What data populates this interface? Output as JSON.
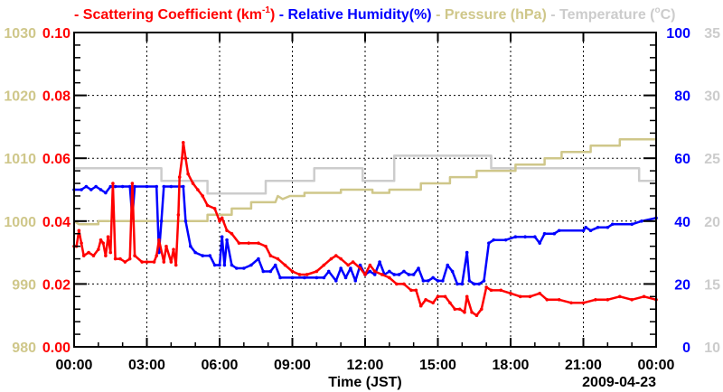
{
  "chart_data": {
    "type": "line",
    "legend": [
      {
        "prefix": "- ",
        "text": "Scattering Coefficient (km",
        "sup": "-1",
        "suffix": ")",
        "color": "#ff0000"
      },
      {
        "prefix": " - ",
        "text": "Relative Humidity(%)",
        "color": "#0000ff"
      },
      {
        "prefix": " - ",
        "text": "Pressure (hPa)",
        "color": "#cfc78a"
      },
      {
        "prefix": " - ",
        "text": "Temperature (",
        "sup": "o",
        "suffix": "C)",
        "color": "#cccccc"
      }
    ],
    "legend_placement": "top",
    "xlabel": "Time (JST)",
    "date_label": "2009-04-23",
    "x_range_hours": [
      0,
      24
    ],
    "x_ticks": [
      "00:00",
      "03:00",
      "06:00",
      "09:00",
      "12:00",
      "15:00",
      "18:00",
      "21:00",
      "00:00"
    ],
    "axes": {
      "scattering": {
        "range": [
          0,
          0.1
        ],
        "ticks": [
          "0.00",
          "0.02",
          "0.04",
          "0.06",
          "0.08",
          "0.10"
        ],
        "color": "#ff0000",
        "side": "left-inner"
      },
      "pressure": {
        "range": [
          980,
          1030
        ],
        "ticks": [
          "980",
          "990",
          "1000",
          "1010",
          "1020",
          "1030"
        ],
        "color": "#cfc78a",
        "side": "left-outer"
      },
      "humidity": {
        "range": [
          0,
          100
        ],
        "ticks": [
          "0",
          "20",
          "40",
          "60",
          "80",
          "100"
        ],
        "color": "#0000ff",
        "side": "right-inner"
      },
      "temperature": {
        "range": [
          10,
          35
        ],
        "ticks": [
          "10",
          "15",
          "20",
          "25",
          "30",
          "35"
        ],
        "color": "#cccccc",
        "side": "right-outer"
      }
    },
    "grid": true,
    "series": [
      {
        "name": "Temperature",
        "axis": "temperature",
        "color": "#cccccc",
        "step": true,
        "points": [
          [
            0,
            24.2
          ],
          [
            3.6,
            24.2
          ],
          [
            3.6,
            23.2
          ],
          [
            5.5,
            23.2
          ],
          [
            5.5,
            22.2
          ],
          [
            7.9,
            22.2
          ],
          [
            7.9,
            23.2
          ],
          [
            9.9,
            23.2
          ],
          [
            9.9,
            24.2
          ],
          [
            11.9,
            24.2
          ],
          [
            11.9,
            23.2
          ],
          [
            13.2,
            23.2
          ],
          [
            13.2,
            25.2
          ],
          [
            17.2,
            25.2
          ],
          [
            17.2,
            24.2
          ],
          [
            23.3,
            24.2
          ],
          [
            23.3,
            23.2
          ],
          [
            24,
            23.2
          ]
        ]
      },
      {
        "name": "Pressure",
        "axis": "pressure",
        "color": "#cfc78a",
        "step": true,
        "points": [
          [
            0,
            1000
          ],
          [
            0.2,
            999.5
          ],
          [
            1,
            999.5
          ],
          [
            1,
            1000
          ],
          [
            5.5,
            1000
          ],
          [
            5.5,
            1001
          ],
          [
            6.5,
            1001
          ],
          [
            6.5,
            1002
          ],
          [
            7.3,
            1002
          ],
          [
            7.3,
            1003
          ],
          [
            8.3,
            1003
          ],
          [
            8.4,
            1004
          ],
          [
            8.6,
            1003.5
          ],
          [
            8.9,
            1004
          ],
          [
            9.5,
            1004
          ],
          [
            9.5,
            1004.5
          ],
          [
            11,
            1004.5
          ],
          [
            11,
            1005
          ],
          [
            12.3,
            1005
          ],
          [
            12.3,
            1004.5
          ],
          [
            13,
            1004.5
          ],
          [
            13,
            1005
          ],
          [
            14.3,
            1005
          ],
          [
            14.3,
            1006
          ],
          [
            15.5,
            1006
          ],
          [
            15.5,
            1007
          ],
          [
            16.6,
            1007
          ],
          [
            16.6,
            1008
          ],
          [
            18.2,
            1008
          ],
          [
            18.2,
            1009
          ],
          [
            19.4,
            1009
          ],
          [
            19.4,
            1010
          ],
          [
            20.1,
            1010
          ],
          [
            20.1,
            1011
          ],
          [
            21.3,
            1011
          ],
          [
            21.3,
            1012
          ],
          [
            22.5,
            1012
          ],
          [
            22.5,
            1013
          ],
          [
            24,
            1013
          ]
        ]
      },
      {
        "name": "Relative Humidity",
        "axis": "humidity",
        "color": "#0000ff",
        "points": [
          [
            0,
            50
          ],
          [
            0.3,
            50
          ],
          [
            0.5,
            51
          ],
          [
            0.7,
            50
          ],
          [
            0.9,
            51
          ],
          [
            1.1,
            50
          ],
          [
            1.3,
            49
          ],
          [
            1.5,
            51
          ],
          [
            1.7,
            51
          ],
          [
            2,
            51
          ],
          [
            2.3,
            51
          ],
          [
            2.4,
            41
          ],
          [
            2.5,
            51
          ],
          [
            3,
            51
          ],
          [
            3.4,
            51
          ],
          [
            3.5,
            30
          ],
          [
            3.6,
            40
          ],
          [
            3.7,
            51
          ],
          [
            4,
            51
          ],
          [
            4.5,
            51
          ],
          [
            4.6,
            40
          ],
          [
            4.8,
            32
          ],
          [
            5.0,
            30
          ],
          [
            5.3,
            29
          ],
          [
            5.6,
            29
          ],
          [
            5.8,
            26
          ],
          [
            6.0,
            26
          ],
          [
            6.1,
            35
          ],
          [
            6.2,
            26
          ],
          [
            6.3,
            34
          ],
          [
            6.5,
            26
          ],
          [
            6.7,
            25
          ],
          [
            7,
            25
          ],
          [
            7.3,
            26
          ],
          [
            7.6,
            28
          ],
          [
            7.8,
            24
          ],
          [
            8.1,
            24
          ],
          [
            8.3,
            26
          ],
          [
            8.5,
            22
          ],
          [
            9,
            22
          ],
          [
            9.5,
            22
          ],
          [
            10,
            22
          ],
          [
            10.3,
            22
          ],
          [
            10.5,
            24
          ],
          [
            10.8,
            21
          ],
          [
            11,
            25
          ],
          [
            11.2,
            22
          ],
          [
            11.4,
            25
          ],
          [
            11.6,
            21
          ],
          [
            11.8,
            26
          ],
          [
            12,
            23
          ],
          [
            12.2,
            24
          ],
          [
            12.4,
            23
          ],
          [
            12.6,
            27
          ],
          [
            12.8,
            23
          ],
          [
            13,
            24
          ],
          [
            13.2,
            23
          ],
          [
            13.4,
            23
          ],
          [
            13.6,
            24
          ],
          [
            13.8,
            23
          ],
          [
            14,
            23
          ],
          [
            14.2,
            25
          ],
          [
            14.4,
            21
          ],
          [
            14.6,
            21
          ],
          [
            14.8,
            22
          ],
          [
            15,
            21
          ],
          [
            15.2,
            21
          ],
          [
            15.4,
            26
          ],
          [
            15.6,
            24
          ],
          [
            15.8,
            20
          ],
          [
            16,
            20
          ],
          [
            16.2,
            30
          ],
          [
            16.3,
            21
          ],
          [
            16.5,
            20
          ],
          [
            16.7,
            20
          ],
          [
            16.9,
            21
          ],
          [
            17.1,
            33
          ],
          [
            17.3,
            34
          ],
          [
            17.8,
            34
          ],
          [
            18.2,
            35
          ],
          [
            18.6,
            35
          ],
          [
            19,
            35
          ],
          [
            19.2,
            33
          ],
          [
            19.4,
            36
          ],
          [
            19.8,
            36
          ],
          [
            20,
            37
          ],
          [
            21,
            37
          ],
          [
            21.1,
            38
          ],
          [
            21.3,
            37
          ],
          [
            21.6,
            38
          ],
          [
            22,
            38
          ],
          [
            22.2,
            39
          ],
          [
            23,
            39
          ],
          [
            23.4,
            40
          ],
          [
            24,
            41
          ]
        ]
      },
      {
        "name": "Scattering Coefficient",
        "axis": "scattering",
        "color": "#ff0000",
        "points": [
          [
            0,
            0.032
          ],
          [
            0.1,
            0.032
          ],
          [
            0.2,
            0.037
          ],
          [
            0.3,
            0.033
          ],
          [
            0.4,
            0.029
          ],
          [
            0.6,
            0.03
          ],
          [
            0.8,
            0.029
          ],
          [
            1.0,
            0.031
          ],
          [
            1.1,
            0.034
          ],
          [
            1.2,
            0.033
          ],
          [
            1.3,
            0.029
          ],
          [
            1.4,
            0.035
          ],
          [
            1.5,
            0.03
          ],
          [
            1.6,
            0.052
          ],
          [
            1.7,
            0.028
          ],
          [
            1.9,
            0.028
          ],
          [
            2.1,
            0.027
          ],
          [
            2.3,
            0.028
          ],
          [
            2.4,
            0.052
          ],
          [
            2.5,
            0.029
          ],
          [
            2.8,
            0.027
          ],
          [
            3.0,
            0.027
          ],
          [
            3.3,
            0.027
          ],
          [
            3.4,
            0.029
          ],
          [
            3.5,
            0.034
          ],
          [
            3.7,
            0.027
          ],
          [
            3.8,
            0.032
          ],
          [
            4.0,
            0.027
          ],
          [
            4.1,
            0.031
          ],
          [
            4.2,
            0.026
          ],
          [
            4.3,
            0.042
          ],
          [
            4.35,
            0.054
          ],
          [
            4.45,
            0.06
          ],
          [
            4.5,
            0.065
          ],
          [
            4.6,
            0.06
          ],
          [
            4.7,
            0.055
          ],
          [
            4.9,
            0.052
          ],
          [
            5.1,
            0.05
          ],
          [
            5.3,
            0.048
          ],
          [
            5.5,
            0.045
          ],
          [
            5.8,
            0.044
          ],
          [
            6.0,
            0.04
          ],
          [
            6.1,
            0.041
          ],
          [
            6.3,
            0.037
          ],
          [
            6.5,
            0.036
          ],
          [
            6.8,
            0.033
          ],
          [
            7.2,
            0.033
          ],
          [
            7.6,
            0.033
          ],
          [
            7.9,
            0.032
          ],
          [
            8.1,
            0.029
          ],
          [
            8.4,
            0.028
          ],
          [
            8.7,
            0.026
          ],
          [
            9.0,
            0.024
          ],
          [
            9.3,
            0.023
          ],
          [
            9.6,
            0.023
          ],
          [
            10,
            0.024
          ],
          [
            10.3,
            0.026
          ],
          [
            10.6,
            0.028
          ],
          [
            10.8,
            0.029
          ],
          [
            11.0,
            0.028
          ],
          [
            11.3,
            0.026
          ],
          [
            11.5,
            0.027
          ],
          [
            11.8,
            0.025
          ],
          [
            12.0,
            0.023
          ],
          [
            12.2,
            0.026
          ],
          [
            12.4,
            0.024
          ],
          [
            12.7,
            0.023
          ],
          [
            13.0,
            0.022
          ],
          [
            13.3,
            0.02
          ],
          [
            13.6,
            0.02
          ],
          [
            13.9,
            0.018
          ],
          [
            14.1,
            0.018
          ],
          [
            14.3,
            0.013
          ],
          [
            14.5,
            0.015
          ],
          [
            14.8,
            0.014
          ],
          [
            15.0,
            0.016
          ],
          [
            15.3,
            0.016
          ],
          [
            15.5,
            0.014
          ],
          [
            15.7,
            0.012
          ],
          [
            15.9,
            0.012
          ],
          [
            16.1,
            0.011
          ],
          [
            16.2,
            0.016
          ],
          [
            16.4,
            0.011
          ],
          [
            16.6,
            0.01
          ],
          [
            16.8,
            0.012
          ],
          [
            17.0,
            0.019
          ],
          [
            17.2,
            0.018
          ],
          [
            17.6,
            0.018
          ],
          [
            18.0,
            0.017
          ],
          [
            18.4,
            0.016
          ],
          [
            18.8,
            0.016
          ],
          [
            19.2,
            0.017
          ],
          [
            19.5,
            0.015
          ],
          [
            20,
            0.015
          ],
          [
            20.5,
            0.014
          ],
          [
            21,
            0.014
          ],
          [
            21.5,
            0.015
          ],
          [
            22,
            0.015
          ],
          [
            22.5,
            0.016
          ],
          [
            23,
            0.015
          ],
          [
            23.5,
            0.016
          ],
          [
            24,
            0.015
          ]
        ]
      }
    ]
  }
}
